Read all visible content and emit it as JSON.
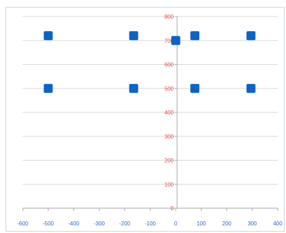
{
  "chart_data": {
    "type": "scatter",
    "title": "",
    "xlabel": "",
    "ylabel": "",
    "xlim": [
      -600,
      400
    ],
    "ylim": [
      0,
      800
    ],
    "x_ticks": [
      -600,
      -500,
      -400,
      -300,
      -200,
      -100,
      0,
      100,
      200,
      300,
      400
    ],
    "y_ticks": [
      0,
      100,
      200,
      300,
      400,
      500,
      600,
      700,
      800
    ],
    "x_tick_labels": [
      "-600",
      "-500",
      "-400",
      "-300",
      "-200",
      "-100",
      "0",
      "100",
      "200",
      "300",
      "400"
    ],
    "y_tick_labels": [
      "0",
      "100",
      "200",
      "300",
      "400",
      "500",
      "600",
      "700",
      "800"
    ],
    "grid": "horizontal",
    "series": [
      {
        "points": [
          {
            "x": -500,
            "y": 720
          },
          {
            "x": -165,
            "y": 720
          },
          {
            "x": 0,
            "y": 700
          },
          {
            "x": 75,
            "y": 720
          },
          {
            "x": 295,
            "y": 720
          },
          {
            "x": -500,
            "y": 500
          },
          {
            "x": -165,
            "y": 500
          },
          {
            "x": 75,
            "y": 500
          },
          {
            "x": 295,
            "y": 500
          }
        ]
      }
    ],
    "colors": {
      "marker": "#0a63c9",
      "x_axis_text": "#2f63d8",
      "y_axis_text": "#e14a4a",
      "grid": "#d9d9d9",
      "axis": "#a6a6a6"
    }
  }
}
